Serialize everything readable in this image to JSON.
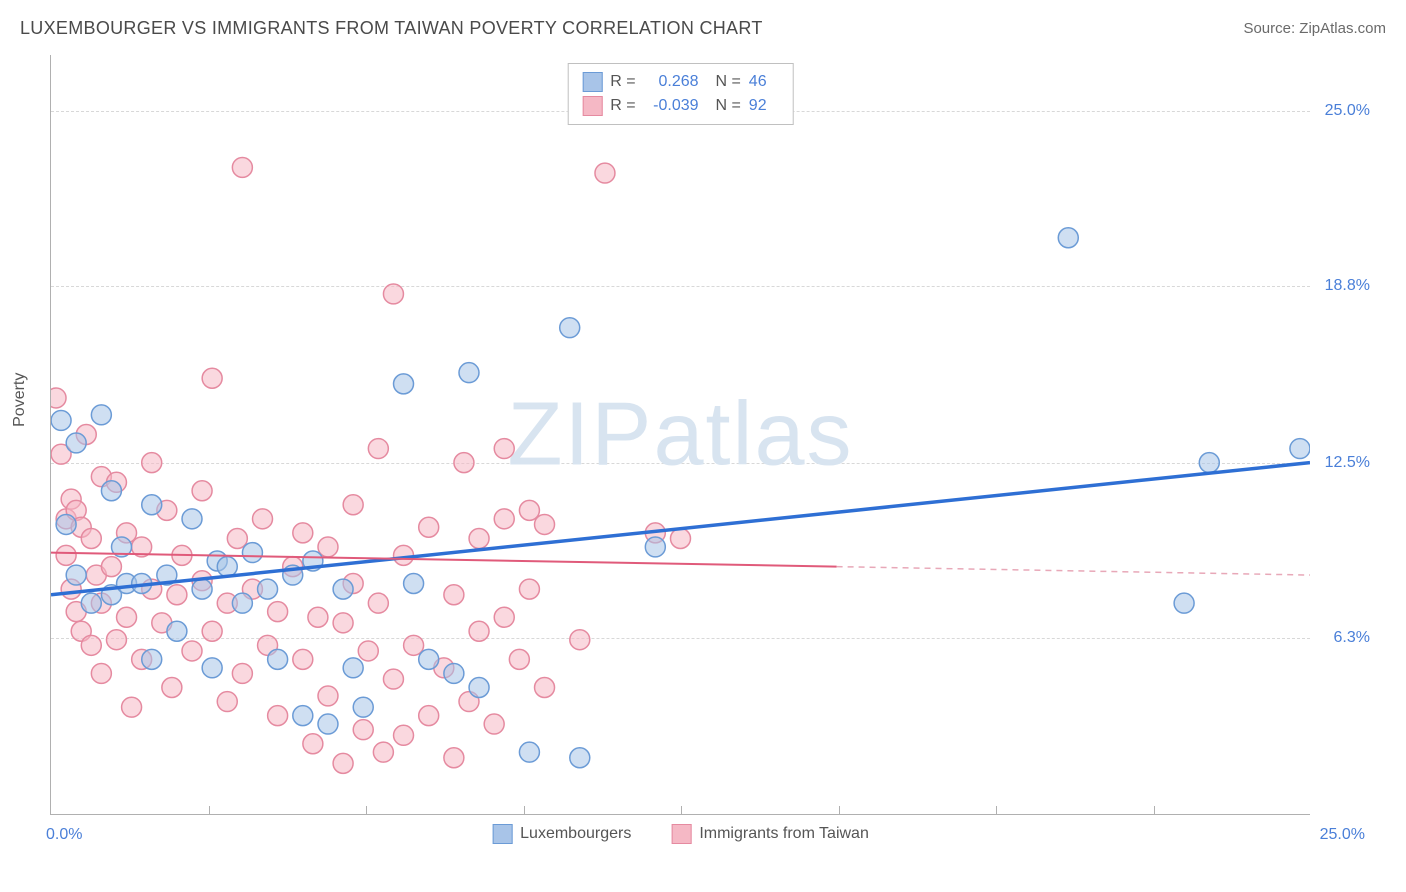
{
  "title": "LUXEMBOURGER VS IMMIGRANTS FROM TAIWAN POVERTY CORRELATION CHART",
  "source": "Source: ZipAtlas.com",
  "watermark": "ZIPatlas",
  "chart": {
    "type": "scatter",
    "xlim": [
      0,
      25
    ],
    "ylim": [
      0,
      27
    ],
    "x_ticks": [
      0,
      25
    ],
    "x_tick_labels": [
      "0.0%",
      "25.0%"
    ],
    "y_ticks": [
      6.3,
      12.5,
      18.8,
      25.0
    ],
    "y_tick_labels": [
      "6.3%",
      "12.5%",
      "18.8%",
      "25.0%"
    ],
    "x_minor_ticks": [
      3.125,
      6.25,
      9.375,
      12.5,
      15.625,
      18.75,
      21.875
    ],
    "y_axis_label": "Poverty",
    "background_color": "#ffffff",
    "grid_color": "#d8d8d8",
    "axis_color": "#b0b0b0",
    "tick_label_color": "#4a7fd8",
    "series": [
      {
        "name": "Luxembourgers",
        "color_fill": "#a8c4e8",
        "color_stroke": "#6b9bd6",
        "fill_opacity": 0.55,
        "marker_radius": 10,
        "r_value": "0.268",
        "n_value": "46",
        "points": [
          [
            0.2,
            14.0
          ],
          [
            0.3,
            10.3
          ],
          [
            0.5,
            8.5
          ],
          [
            0.5,
            13.2
          ],
          [
            0.8,
            7.5
          ],
          [
            1.0,
            14.2
          ],
          [
            1.2,
            11.5
          ],
          [
            1.2,
            7.8
          ],
          [
            1.4,
            9.5
          ],
          [
            1.5,
            8.2
          ],
          [
            1.8,
            8.2
          ],
          [
            2.0,
            11.0
          ],
          [
            2.0,
            5.5
          ],
          [
            2.3,
            8.5
          ],
          [
            2.5,
            6.5
          ],
          [
            2.8,
            10.5
          ],
          [
            3.0,
            8.0
          ],
          [
            3.2,
            5.2
          ],
          [
            3.3,
            9.0
          ],
          [
            3.5,
            8.8
          ],
          [
            3.8,
            7.5
          ],
          [
            4.0,
            9.3
          ],
          [
            4.3,
            8.0
          ],
          [
            4.5,
            5.5
          ],
          [
            4.8,
            8.5
          ],
          [
            5.0,
            3.5
          ],
          [
            5.2,
            9.0
          ],
          [
            5.5,
            3.2
          ],
          [
            5.8,
            8.0
          ],
          [
            6.0,
            5.2
          ],
          [
            6.2,
            3.8
          ],
          [
            7.0,
            15.3
          ],
          [
            7.2,
            8.2
          ],
          [
            7.5,
            5.5
          ],
          [
            8.0,
            5.0
          ],
          [
            8.3,
            15.7
          ],
          [
            8.5,
            4.5
          ],
          [
            9.5,
            2.2
          ],
          [
            10.3,
            17.3
          ],
          [
            10.5,
            2.0
          ],
          [
            12.0,
            9.5
          ],
          [
            20.2,
            20.5
          ],
          [
            22.5,
            7.5
          ],
          [
            23.0,
            12.5
          ],
          [
            24.8,
            13.0
          ]
        ],
        "trend_line": {
          "x1": 0,
          "y1": 7.8,
          "x2": 25,
          "y2": 12.5,
          "color": "#2e6fd4",
          "width": 3.5
        }
      },
      {
        "name": "Immigrants from Taiwan",
        "color_fill": "#f5b8c5",
        "color_stroke": "#e58aa0",
        "fill_opacity": 0.55,
        "marker_radius": 10,
        "r_value": "-0.039",
        "n_value": "92",
        "points": [
          [
            0.1,
            14.8
          ],
          [
            0.2,
            12.8
          ],
          [
            0.3,
            10.5
          ],
          [
            0.3,
            9.2
          ],
          [
            0.4,
            11.2
          ],
          [
            0.4,
            8.0
          ],
          [
            0.5,
            10.8
          ],
          [
            0.5,
            7.2
          ],
          [
            0.6,
            10.2
          ],
          [
            0.6,
            6.5
          ],
          [
            0.7,
            13.5
          ],
          [
            0.8,
            9.8
          ],
          [
            0.8,
            6.0
          ],
          [
            0.9,
            8.5
          ],
          [
            1.0,
            12.0
          ],
          [
            1.0,
            7.5
          ],
          [
            1.0,
            5.0
          ],
          [
            1.2,
            8.8
          ],
          [
            1.3,
            11.8
          ],
          [
            1.3,
            6.2
          ],
          [
            1.5,
            10.0
          ],
          [
            1.5,
            7.0
          ],
          [
            1.6,
            3.8
          ],
          [
            1.8,
            9.5
          ],
          [
            1.8,
            5.5
          ],
          [
            2.0,
            12.5
          ],
          [
            2.0,
            8.0
          ],
          [
            2.2,
            6.8
          ],
          [
            2.3,
            10.8
          ],
          [
            2.4,
            4.5
          ],
          [
            2.5,
            7.8
          ],
          [
            2.6,
            9.2
          ],
          [
            2.8,
            5.8
          ],
          [
            3.0,
            8.3
          ],
          [
            3.0,
            11.5
          ],
          [
            3.2,
            15.5
          ],
          [
            3.2,
            6.5
          ],
          [
            3.5,
            7.5
          ],
          [
            3.5,
            4.0
          ],
          [
            3.7,
            9.8
          ],
          [
            3.8,
            23.0
          ],
          [
            3.8,
            5.0
          ],
          [
            4.0,
            8.0
          ],
          [
            4.2,
            10.5
          ],
          [
            4.3,
            6.0
          ],
          [
            4.5,
            7.2
          ],
          [
            4.5,
            3.5
          ],
          [
            4.8,
            8.8
          ],
          [
            5.0,
            5.5
          ],
          [
            5.0,
            10.0
          ],
          [
            5.2,
            2.5
          ],
          [
            5.3,
            7.0
          ],
          [
            5.5,
            9.5
          ],
          [
            5.5,
            4.2
          ],
          [
            5.8,
            6.8
          ],
          [
            5.8,
            1.8
          ],
          [
            6.0,
            11.0
          ],
          [
            6.0,
            8.2
          ],
          [
            6.2,
            3.0
          ],
          [
            6.3,
            5.8
          ],
          [
            6.5,
            13.0
          ],
          [
            6.5,
            7.5
          ],
          [
            6.6,
            2.2
          ],
          [
            6.8,
            4.8
          ],
          [
            6.8,
            18.5
          ],
          [
            7.0,
            9.2
          ],
          [
            7.0,
            2.8
          ],
          [
            7.2,
            6.0
          ],
          [
            7.5,
            3.5
          ],
          [
            7.5,
            10.2
          ],
          [
            7.8,
            5.2
          ],
          [
            8.0,
            7.8
          ],
          [
            8.0,
            2.0
          ],
          [
            8.2,
            12.5
          ],
          [
            8.3,
            4.0
          ],
          [
            8.5,
            6.5
          ],
          [
            8.5,
            9.8
          ],
          [
            8.8,
            3.2
          ],
          [
            9.0,
            7.0
          ],
          [
            9.0,
            10.5
          ],
          [
            9.0,
            13.0
          ],
          [
            9.3,
            5.5
          ],
          [
            9.5,
            8.0
          ],
          [
            9.5,
            10.8
          ],
          [
            9.8,
            4.5
          ],
          [
            9.8,
            10.3
          ],
          [
            10.5,
            6.2
          ],
          [
            11.0,
            22.8
          ],
          [
            12.0,
            10.0
          ],
          [
            12.5,
            9.8
          ]
        ],
        "trend_line": {
          "x1": 0,
          "y1": 9.3,
          "x2": 15.6,
          "y2": 8.8,
          "color": "#e05a7a",
          "width": 2
        },
        "trend_extension": {
          "x1": 15.6,
          "y1": 8.8,
          "x2": 25,
          "y2": 8.5,
          "color": "#e8a8b8",
          "width": 1.5,
          "dash": "6,5"
        }
      }
    ],
    "legend_bottom": [
      {
        "label": "Luxembourgers",
        "fill": "#a8c4e8",
        "stroke": "#6b9bd6"
      },
      {
        "label": "Immigrants from Taiwan",
        "fill": "#f5b8c5",
        "stroke": "#e58aa0"
      }
    ]
  }
}
